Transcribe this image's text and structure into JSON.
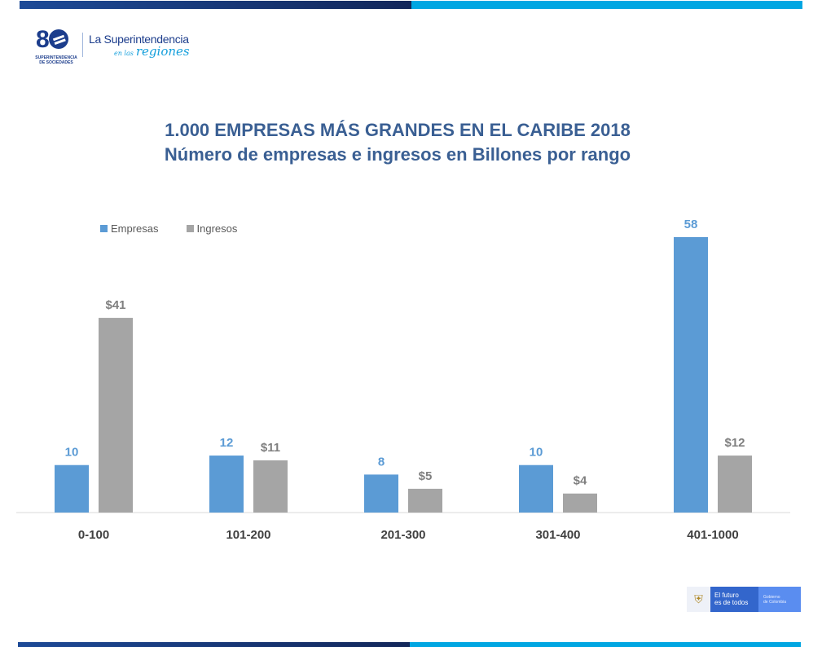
{
  "header": {
    "logo_number": "8",
    "logo_subtitle_line1": "SUPERINTENDENCIA",
    "logo_subtitle_line2": "DE SOCIEDADES",
    "tagline": "La Superintendencia",
    "tagline_small": "en las",
    "tagline_script": "regiones"
  },
  "footer": {
    "line1": "El futuro",
    "line2": "es de todos",
    "gov_line1": "Gobierno",
    "gov_line2": "de Colombia"
  },
  "colors": {
    "empresas": "#5b9bd5",
    "ingresos": "#a5a5a5",
    "title": "#3a5f93"
  },
  "chart_data": {
    "type": "bar",
    "title": "1.000 EMPRESAS MÁS GRANDES EN EL CARIBE 2018",
    "subtitle": "Número de empresas e ingresos en Billones por rango",
    "xlabel": "",
    "ylabel": "",
    "categories": [
      "0-100",
      "101-200",
      "201-300",
      "301-400",
      "401-1000"
    ],
    "series": [
      {
        "name": "Empresas",
        "values": [
          10,
          12,
          8,
          10,
          58
        ],
        "labels": [
          "10",
          "12",
          "8",
          "10",
          "58"
        ]
      },
      {
        "name": "Ingresos",
        "values": [
          41,
          11,
          5,
          4,
          12
        ],
        "labels": [
          "$41",
          "$11",
          "$5",
          "$4",
          "$12"
        ]
      }
    ],
    "ylim": [
      0,
      58
    ],
    "grid": false,
    "legend": "top-left"
  }
}
